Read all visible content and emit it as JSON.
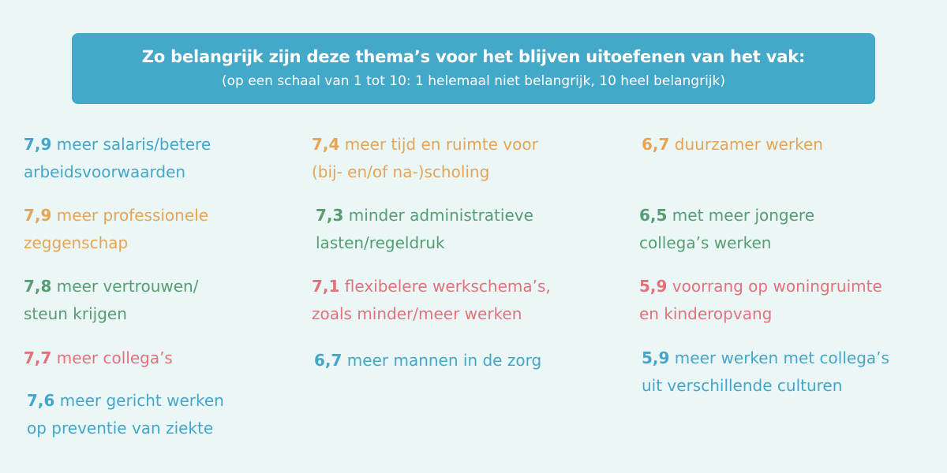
{
  "header": {
    "title": "Zo belangrijk zijn deze thema’s voor het blijven uitoefenen van het vak:",
    "subtitle": "(op een schaal van 1 tot 10: 1 helemaal niet belangrijk, 10 heel belangrijk)"
  },
  "colors": {
    "background": "#eaf7f6",
    "banner": "#44a8c8",
    "blue": "#45a6c9",
    "orange": "#e7a455",
    "green": "#579c72",
    "red": "#e2727a"
  },
  "columns": [
    {
      "items": [
        {
          "score": "7,9",
          "line1": "meer salaris/betere",
          "line2": "arbeidsvoorwaarden",
          "color": "blue"
        },
        {
          "score": "7,9",
          "line1": "meer professionele",
          "line2": "zeggenschap",
          "color": "orange"
        },
        {
          "score": "7,8",
          "line1": "meer vertrouwen/",
          "line2": "steun krijgen",
          "color": "green"
        },
        {
          "score": "7,7",
          "line1": "meer collega’s",
          "line2": "",
          "color": "red"
        },
        {
          "score": "7,6",
          "line1": "meer gericht werken",
          "line2": " op preventie van ziekte",
          "color": "blue"
        }
      ]
    },
    {
      "items": [
        {
          "score": "7,4",
          "line1": "meer tijd en ruimte voor",
          "line2": "(bij- en/of na-)scholing",
          "color": "orange"
        },
        {
          "score": "7,3",
          "line1": "minder administratieve",
          "line2": "lasten/regeldruk",
          "color": "green"
        },
        {
          "score": "7,1",
          "line1": "flexibelere werkschema’s,",
          "line2": "zoals minder/meer werken",
          "color": "red"
        },
        {
          "score": "6,7",
          "line1": "meer mannen in de zorg",
          "line2": "",
          "color": "blue"
        }
      ]
    },
    {
      "items": [
        {
          "score": "6,7",
          "line1": "duurzamer werken",
          "line2": "",
          "color": "orange"
        },
        {
          "score": "6,5",
          "line1": "met meer jongere",
          "line2": "collega’s werken",
          "color": "green"
        },
        {
          "score": "5,9",
          "line1": "voorrang op woningruimte",
          "line2": "en kinderopvang",
          "color": "red"
        },
        {
          "score": "5,9",
          "line1": "meer werken met collega’s",
          "line2": "uit verschillende culturen",
          "color": "blue"
        }
      ]
    }
  ]
}
